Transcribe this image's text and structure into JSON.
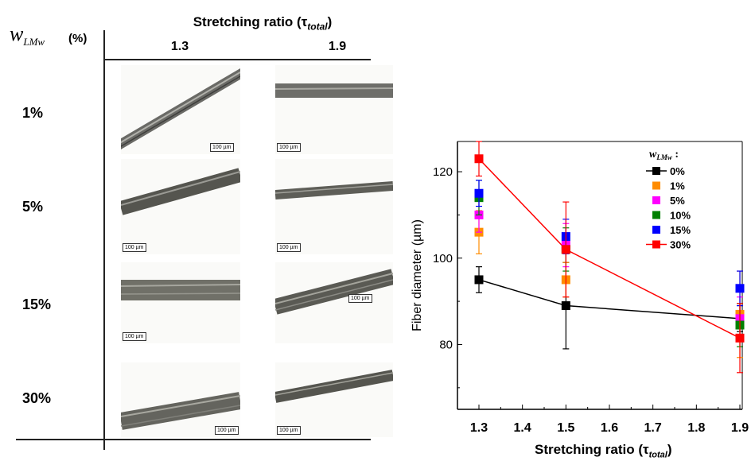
{
  "table": {
    "header_title": "Stretching ratio (τ",
    "header_title_sub": "total",
    "header_title_close": ")",
    "row_header_var": "w",
    "row_header_sub": "LMw",
    "row_header_unit": "(%)",
    "columns": [
      "1.3",
      "1.9"
    ],
    "rows": [
      "1%",
      "5%",
      "15%",
      "30%"
    ],
    "scale_bar_label": "100 µm"
  },
  "chart_data": {
    "type": "scatter",
    "x_ticks": [
      "1.3",
      "1.4",
      "1.5",
      "1.6",
      "1.7",
      "1.8",
      "1.9"
    ],
    "y_ticks": [
      "80",
      "100",
      "120"
    ],
    "xlim": [
      1.3,
      1.9
    ],
    "ylim": [
      65,
      127
    ],
    "xlabel": "Stretching ratio (τ",
    "xlabel_sub": "total",
    "xlabel_close": ")",
    "ylabel": "Fiber diameter (µm)",
    "legend_title": "w",
    "legend_title_sub": "LMw",
    "legend_title_suffix": " :",
    "legend_position": "top-right",
    "series": [
      {
        "name": "0%",
        "color": "#000000",
        "line": true,
        "x": [
          1.3,
          1.5,
          1.9
        ],
        "y": [
          95,
          89,
          86
        ],
        "err": [
          3,
          10,
          3
        ]
      },
      {
        "name": "1%",
        "color": "#ff8c00",
        "line": false,
        "x": [
          1.3,
          1.5,
          1.9
        ],
        "y": [
          106,
          95,
          87
        ],
        "err": [
          5,
          4,
          10
        ]
      },
      {
        "name": "5%",
        "color": "#ff00ff",
        "line": false,
        "x": [
          1.3,
          1.5,
          1.9
        ],
        "y": [
          110,
          103,
          86
        ],
        "err": [
          4,
          5,
          5
        ]
      },
      {
        "name": "10%",
        "color": "#008000",
        "line": false,
        "x": [
          1.3,
          1.5,
          1.9
        ],
        "y": [
          114,
          102,
          84.5
        ],
        "err": [
          4,
          5,
          5
        ]
      },
      {
        "name": "15%",
        "color": "#0000ff",
        "line": false,
        "x": [
          1.3,
          1.5,
          1.9
        ],
        "y": [
          115,
          105,
          93
        ],
        "err": [
          3,
          4,
          4
        ]
      },
      {
        "name": "30%",
        "color": "#ff0000",
        "line": true,
        "x": [
          1.3,
          1.5,
          1.9
        ],
        "y": [
          123,
          102,
          81.5
        ],
        "err": [
          4,
          11,
          8
        ]
      }
    ]
  }
}
